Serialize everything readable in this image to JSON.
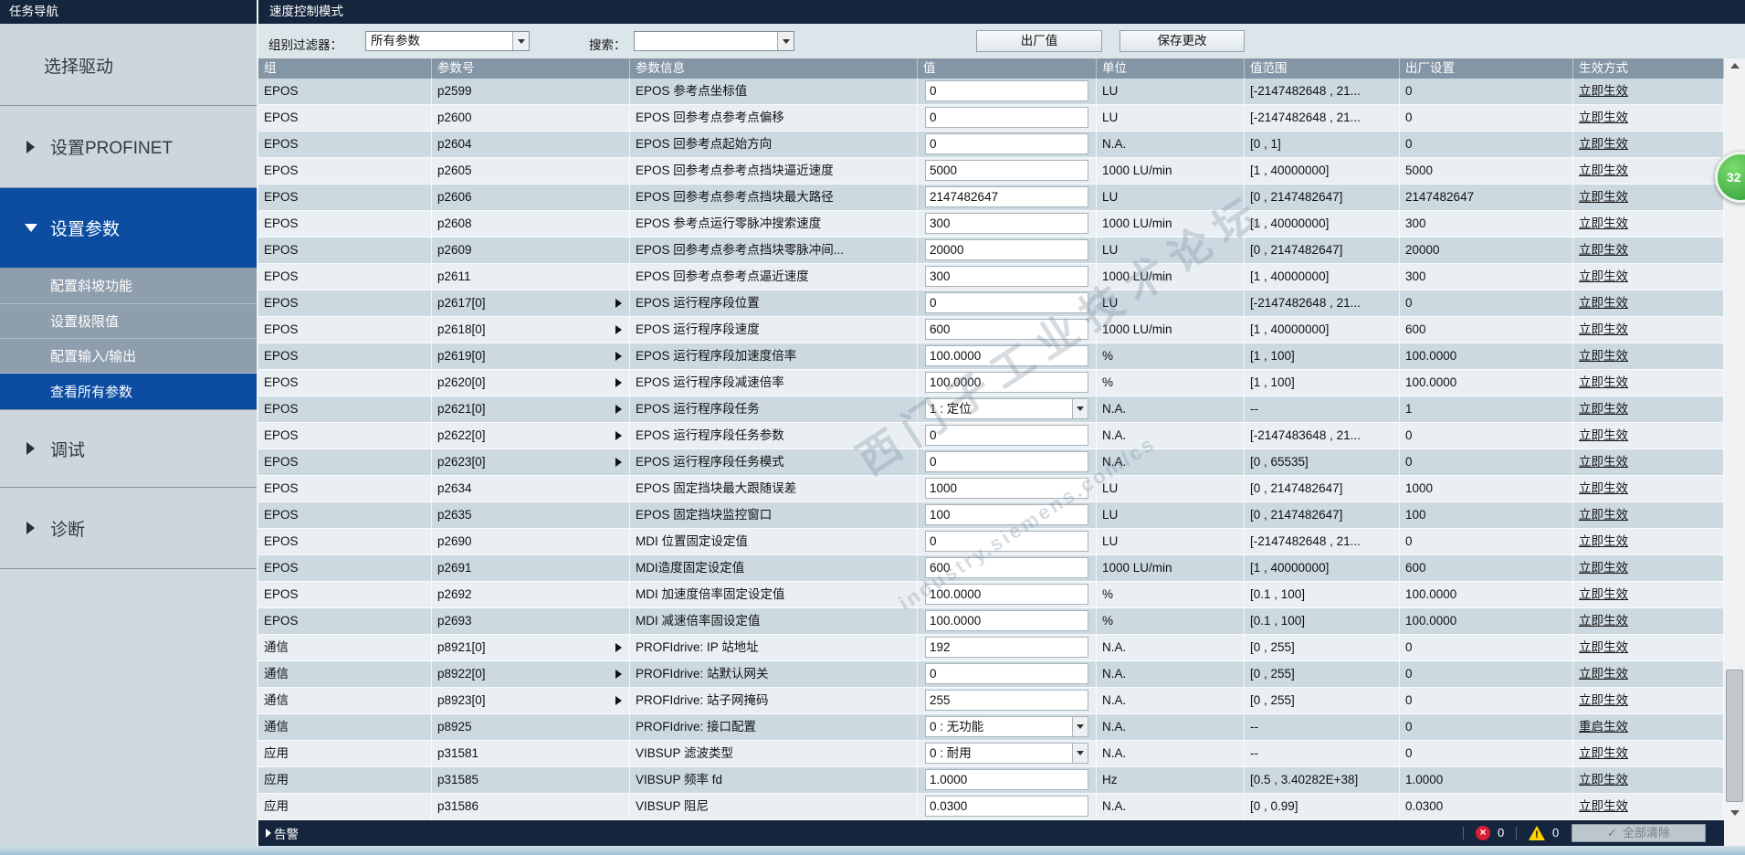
{
  "sidebar": {
    "header": "任务导航",
    "items": [
      {
        "label": "选择驱动"
      },
      {
        "label": "设置PROFINET"
      },
      {
        "label": "设置参数"
      },
      {
        "label": "配置斜坡功能"
      },
      {
        "label": "设置极限值"
      },
      {
        "label": "配置输入/输出"
      },
      {
        "label": "查看所有参数"
      },
      {
        "label": "调试"
      },
      {
        "label": "诊断"
      }
    ]
  },
  "main": {
    "title": "速度控制模式",
    "toolbar": {
      "group_filter_label": "组别过滤器：",
      "group_filter_value": "所有参数",
      "search_label": "搜索：",
      "search_value": "",
      "factory_button": "出厂值",
      "save_button": "保存更改"
    },
    "table": {
      "columns": [
        "组",
        "参数号",
        "参数信息",
        "值",
        "单位",
        "值范围",
        "出厂设置",
        "生效方式"
      ],
      "rows": [
        {
          "group": "EPOS",
          "number": "p2599",
          "expandable": false,
          "info": "EPOS 参考点坐标值",
          "value": "0",
          "value_type": "input",
          "unit": "LU",
          "range": "[-2147482648 , 21...",
          "factory": "0",
          "effect": "立即生效"
        },
        {
          "group": "EPOS",
          "number": "p2600",
          "expandable": false,
          "info": "EPOS 回参考点参考点偏移",
          "value": "0",
          "value_type": "input",
          "unit": "LU",
          "range": "[-2147482648 , 21...",
          "factory": "0",
          "effect": "立即生效"
        },
        {
          "group": "EPOS",
          "number": "p2604",
          "expandable": false,
          "info": "EPOS 回参考点起始方向",
          "value": "0",
          "value_type": "input",
          "unit": "N.A.",
          "range": "[0 , 1]",
          "factory": "0",
          "effect": "立即生效"
        },
        {
          "group": "EPOS",
          "number": "p2605",
          "expandable": false,
          "info": "EPOS 回参考点参考点挡块逼近速度",
          "value": "5000",
          "value_type": "input",
          "unit": "1000 LU/min",
          "range": "[1 , 40000000]",
          "factory": "5000",
          "effect": "立即生效"
        },
        {
          "group": "EPOS",
          "number": "p2606",
          "expandable": false,
          "info": "EPOS 回参考点参考点挡块最大路径",
          "value": "2147482647",
          "value_type": "input",
          "unit": "LU",
          "range": "[0 , 2147482647]",
          "factory": "2147482647",
          "effect": "立即生效"
        },
        {
          "group": "EPOS",
          "number": "p2608",
          "expandable": false,
          "info": "EPOS 参考点运行零脉冲搜索速度",
          "value": "300",
          "value_type": "input",
          "unit": "1000 LU/min",
          "range": "[1 , 40000000]",
          "factory": "300",
          "effect": "立即生效"
        },
        {
          "group": "EPOS",
          "number": "p2609",
          "expandable": false,
          "info": "EPOS 回参考点参考点挡块零脉冲间...",
          "value": "20000",
          "value_type": "input",
          "unit": "LU",
          "range": "[0 , 2147482647]",
          "factory": "20000",
          "effect": "立即生效"
        },
        {
          "group": "EPOS",
          "number": "p2611",
          "expandable": false,
          "info": "EPOS 回参考点参考点逼近速度",
          "value": "300",
          "value_type": "input",
          "unit": "1000 LU/min",
          "range": "[1 , 40000000]",
          "factory": "300",
          "effect": "立即生效"
        },
        {
          "group": "EPOS",
          "number": "p2617[0]",
          "expandable": true,
          "info": "EPOS 运行程序段位置",
          "value": "0",
          "value_type": "input",
          "unit": "LU",
          "range": "[-2147482648 , 21...",
          "factory": "0",
          "effect": "立即生效"
        },
        {
          "group": "EPOS",
          "number": "p2618[0]",
          "expandable": true,
          "info": "EPOS 运行程序段速度",
          "value": "600",
          "value_type": "input",
          "unit": "1000 LU/min",
          "range": "[1 , 40000000]",
          "factory": "600",
          "effect": "立即生效"
        },
        {
          "group": "EPOS",
          "number": "p2619[0]",
          "expandable": true,
          "info": "EPOS 运行程序段加速度倍率",
          "value": "100.0000",
          "value_type": "input",
          "unit": "%",
          "range": "[1 , 100]",
          "factory": "100.0000",
          "effect": "立即生效"
        },
        {
          "group": "EPOS",
          "number": "p2620[0]",
          "expandable": true,
          "info": "EPOS 运行程序段减速倍率",
          "value": "100.0000",
          "value_type": "input",
          "unit": "%",
          "range": "[1 , 100]",
          "factory": "100.0000",
          "effect": "立即生效"
        },
        {
          "group": "EPOS",
          "number": "p2621[0]",
          "expandable": true,
          "info": "EPOS 运行程序段任务",
          "value": "1 : 定位",
          "value_type": "select",
          "unit": "N.A.",
          "range": "--",
          "factory": "1",
          "effect": "立即生效"
        },
        {
          "group": "EPOS",
          "number": "p2622[0]",
          "expandable": true,
          "info": "EPOS 运行程序段任务参数",
          "value": "0",
          "value_type": "input",
          "unit": "N.A.",
          "range": "[-2147483648 , 21...",
          "factory": "0",
          "effect": "立即生效"
        },
        {
          "group": "EPOS",
          "number": "p2623[0]",
          "expandable": true,
          "info": "EPOS 运行程序段任务模式",
          "value": "0",
          "value_type": "input",
          "unit": "N.A.",
          "range": "[0 , 65535]",
          "factory": "0",
          "effect": "立即生效"
        },
        {
          "group": "EPOS",
          "number": "p2634",
          "expandable": false,
          "info": "EPOS 固定挡块最大跟随误差",
          "value": "1000",
          "value_type": "input",
          "unit": "LU",
          "range": "[0 , 2147482647]",
          "factory": "1000",
          "effect": "立即生效"
        },
        {
          "group": "EPOS",
          "number": "p2635",
          "expandable": false,
          "info": "EPOS 固定挡块监控窗口",
          "value": "100",
          "value_type": "input",
          "unit": "LU",
          "range": "[0 , 2147482647]",
          "factory": "100",
          "effect": "立即生效"
        },
        {
          "group": "EPOS",
          "number": "p2690",
          "expandable": false,
          "info": "MDI 位置固定设定值",
          "value": "0",
          "value_type": "input",
          "unit": "LU",
          "range": "[-2147482648 , 21...",
          "factory": "0",
          "effect": "立即生效"
        },
        {
          "group": "EPOS",
          "number": "p2691",
          "expandable": false,
          "info": "MDI造度固定设定值",
          "value": "600",
          "value_type": "input",
          "unit": "1000 LU/min",
          "range": "[1 , 40000000]",
          "factory": "600",
          "effect": "立即生效"
        },
        {
          "group": "EPOS",
          "number": "p2692",
          "expandable": false,
          "info": "MDI 加速度倍率固定设定值",
          "value": "100.0000",
          "value_type": "input",
          "unit": "%",
          "range": "[0.1 , 100]",
          "factory": "100.0000",
          "effect": "立即生效"
        },
        {
          "group": "EPOS",
          "number": "p2693",
          "expandable": false,
          "info": "MDI 减速倍率固设定值",
          "value": "100.0000",
          "value_type": "input",
          "unit": "%",
          "range": "[0.1 , 100]",
          "factory": "100.0000",
          "effect": "立即生效"
        },
        {
          "group": "通信",
          "number": "p8921[0]",
          "expandable": true,
          "info": "PROFIdrive: IP 站地址",
          "value": "192",
          "value_type": "input",
          "unit": "N.A.",
          "range": "[0 , 255]",
          "factory": "0",
          "effect": "立即生效"
        },
        {
          "group": "通信",
          "number": "p8922[0]",
          "expandable": true,
          "info": "PROFIdrive: 站默认网关",
          "value": "0",
          "value_type": "input",
          "unit": "N.A.",
          "range": "[0 , 255]",
          "factory": "0",
          "effect": "立即生效"
        },
        {
          "group": "通信",
          "number": "p8923[0]",
          "expandable": true,
          "info": "PROFIdrive: 站子网掩码",
          "value": "255",
          "value_type": "input",
          "unit": "N.A.",
          "range": "[0 , 255]",
          "factory": "0",
          "effect": "立即生效"
        },
        {
          "group": "通信",
          "number": "p8925",
          "expandable": false,
          "info": "PROFIdrive: 接口配置",
          "value": "0 : 无功能",
          "value_type": "select",
          "unit": "N.A.",
          "range": "--",
          "factory": "0",
          "effect": "重启生效"
        },
        {
          "group": "应用",
          "number": "p31581",
          "expandable": false,
          "info": "VIBSUP 滤波类型",
          "value": "0 : 耐用",
          "value_type": "select",
          "unit": "N.A.",
          "range": "--",
          "factory": "0",
          "effect": "立即生效"
        },
        {
          "group": "应用",
          "number": "p31585",
          "expandable": false,
          "info": "VIBSUP 频率 fd",
          "value": "1.0000",
          "value_type": "input",
          "unit": "Hz",
          "range": "[0.5 , 3.40282E+38]",
          "factory": "1.0000",
          "effect": "立即生效"
        },
        {
          "group": "应用",
          "number": "p31586",
          "expandable": false,
          "info": "VIBSUP 阻尼",
          "value": "0.0300",
          "value_type": "input",
          "unit": "N.A.",
          "range": "[0 , 0.99]",
          "factory": "0.0300",
          "effect": "立即生效"
        }
      ]
    },
    "statusbar": {
      "alarm_label": "告警",
      "error_count": "0",
      "warning_count": "0",
      "clear_button": "全部清除",
      "clear_check": "✓"
    }
  },
  "badge": {
    "text": "32"
  },
  "watermark": {
    "line1": "西门子工业技术论坛",
    "line2": "industry.siemens.com/cs"
  },
  "colors": {
    "titlebar": "#15253d",
    "selection_blue": "#0c4da2",
    "sidebar_bg": "#ccd6dc",
    "sidebar_sub": "#8e9ead",
    "table_header": "#8496a6",
    "row_dark": "#ccd9e1",
    "row_light": "#e9eff3",
    "error_red": "#d81f33",
    "warning_yellow": "#ffd400",
    "badge_green": "#2b9a33"
  }
}
